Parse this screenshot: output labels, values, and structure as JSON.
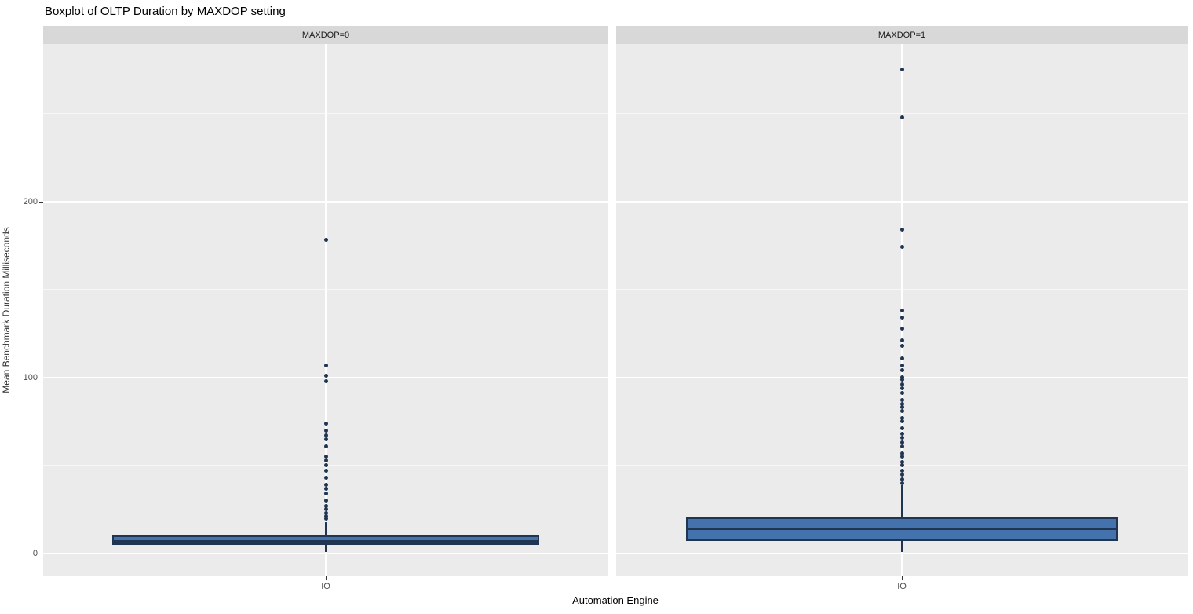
{
  "title": "Boxplot of OLTP Duration by MAXDOP setting",
  "colors": {
    "box_fill": "#4472ac",
    "box_border": "#1f3552",
    "outlier": "#1f3552",
    "panel_bg": "#ebebeb",
    "strip_bg": "#d8d8d8",
    "grid_major": "#ffffff",
    "grid_minor": "#f7f7f7",
    "tick_text": "#4d4d4d"
  },
  "chart_data": {
    "type": "boxplot",
    "title": "Boxplot of OLTP Duration by MAXDOP setting",
    "xlabel": "Automation Engine",
    "ylabel": "Mean Benchmark Duration Milliseconds",
    "x_category": "IO",
    "y_ticks": [
      0,
      100,
      200
    ],
    "y_minor_gridlines": [
      50,
      150,
      250
    ],
    "ylim": [
      -12.5,
      289.5
    ],
    "grid": true,
    "legend": false,
    "facets": [
      {
        "label": "MAXDOP=0",
        "category": "IO",
        "box": {
          "whisker_low": 1,
          "q1": 5,
          "median": 7,
          "q3": 10.3,
          "whisker_high": 18
        },
        "outliers": [
          178,
          107,
          101,
          98,
          74,
          70,
          67,
          65,
          61,
          55,
          53,
          50,
          47,
          43,
          39,
          37,
          34,
          30,
          27,
          25,
          23,
          21,
          20
        ]
      },
      {
        "label": "MAXDOP=1",
        "category": "IO",
        "box": {
          "whisker_low": 1,
          "q1": 7,
          "median": 14,
          "q3": 20.3,
          "whisker_high": 39
        },
        "outliers": [
          275,
          248,
          184,
          174,
          138,
          134,
          128,
          121,
          118,
          111,
          107,
          104,
          100,
          99,
          96,
          94,
          91,
          87,
          85,
          83,
          81,
          77,
          75,
          71,
          68,
          66,
          63,
          61,
          57,
          55,
          52,
          50,
          47,
          45,
          42,
          40
        ]
      }
    ]
  }
}
